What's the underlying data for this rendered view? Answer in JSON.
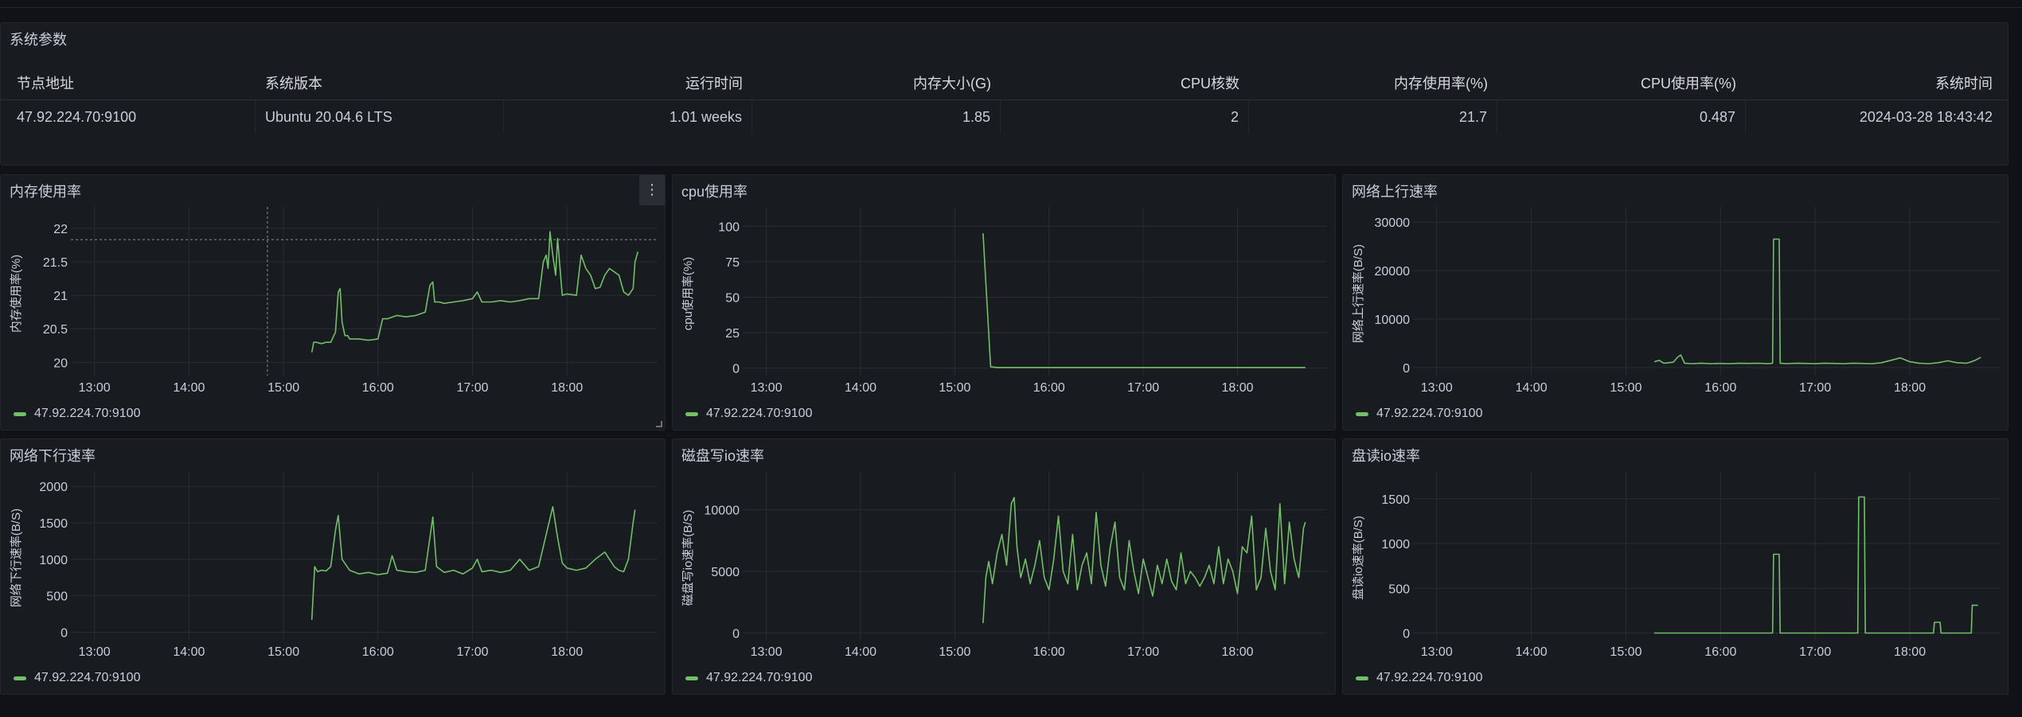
{
  "table_panel": {
    "title": "系统参数",
    "columns": [
      "节点地址",
      "系统版本",
      "运行时间",
      "内存大小(G)",
      "CPU核数",
      "内存使用率(%)",
      "CPU使用率(%)",
      "系统时间"
    ],
    "row": [
      "47.92.224.70:9100",
      "Ubuntu 20.04.6 LTS",
      "1.01 weeks",
      "1.85",
      "2",
      "21.7",
      "0.487",
      "2024-03-28 18:43:42"
    ]
  },
  "legend_label": "47.92.224.70:9100",
  "series_color": "#73bf69",
  "icons": {
    "panel_menu": "vertical-dots-icon"
  },
  "chart_data": [
    {
      "id": "mem",
      "type": "line",
      "title": "内存使用率",
      "ylabel": "内存使用率(%)",
      "xlim": [
        12.75,
        18.95
      ],
      "ylim": [
        19.85,
        22.2
      ],
      "yticks": [
        20,
        20.5,
        21,
        21.5,
        22
      ],
      "ytick_labels": [
        "20",
        "20.5",
        "21",
        "21.5",
        "22"
      ],
      "xticks": [
        13,
        14,
        15,
        16,
        17,
        18
      ],
      "xtick_labels": [
        "13:00",
        "14:00",
        "15:00",
        "16:00",
        "17:00",
        "18:00"
      ],
      "grid": true,
      "hover_x": 14.83,
      "hover_y": 21.83,
      "series": [
        {
          "name": "47.92.224.70:9100",
          "x": [
            15.3,
            15.32,
            15.35,
            15.4,
            15.45,
            15.5,
            15.55,
            15.58,
            15.6,
            15.62,
            15.65,
            15.68,
            15.7,
            15.8,
            15.9,
            16.0,
            16.05,
            16.1,
            16.2,
            16.3,
            16.4,
            16.5,
            16.55,
            16.58,
            16.6,
            16.65,
            16.7,
            16.8,
            16.9,
            17.0,
            17.05,
            17.1,
            17.2,
            17.3,
            17.4,
            17.5,
            17.6,
            17.7,
            17.75,
            17.78,
            17.8,
            17.82,
            17.85,
            17.88,
            17.9,
            17.95,
            18.0,
            18.1,
            18.15,
            18.2,
            18.25,
            18.3,
            18.35,
            18.4,
            18.45,
            18.5,
            18.55,
            18.6,
            18.65,
            18.7,
            18.72,
            18.75
          ],
          "y": [
            20.15,
            20.3,
            20.3,
            20.28,
            20.3,
            20.3,
            20.45,
            21.05,
            21.1,
            20.6,
            20.4,
            20.4,
            20.35,
            20.35,
            20.33,
            20.35,
            20.65,
            20.65,
            20.7,
            20.68,
            20.7,
            20.75,
            21.15,
            21.2,
            20.9,
            20.9,
            20.88,
            20.9,
            20.92,
            20.95,
            21.05,
            20.9,
            20.9,
            20.92,
            20.9,
            20.92,
            20.95,
            20.95,
            21.5,
            21.6,
            21.4,
            21.95,
            21.6,
            21.3,
            21.85,
            21.0,
            21.02,
            21.0,
            21.6,
            21.4,
            21.3,
            21.1,
            21.12,
            21.3,
            21.4,
            21.35,
            21.3,
            21.05,
            21.0,
            21.1,
            21.5,
            21.65
          ]
        }
      ]
    },
    {
      "id": "cpu",
      "type": "line",
      "title": "cpu使用率",
      "ylabel": "cpu使用率(%)",
      "xlim": [
        12.75,
        18.95
      ],
      "ylim": [
        -3,
        108
      ],
      "yticks": [
        0,
        25,
        50,
        75,
        100
      ],
      "ytick_labels": [
        "0",
        "25",
        "50",
        "75",
        "100"
      ],
      "xticks": [
        13,
        14,
        15,
        16,
        17,
        18
      ],
      "xtick_labels": [
        "13:00",
        "14:00",
        "15:00",
        "16:00",
        "17:00",
        "18:00"
      ],
      "grid": true,
      "series": [
        {
          "name": "47.92.224.70:9100",
          "x": [
            15.3,
            15.38,
            15.45,
            16.0,
            17.0,
            18.0,
            18.72
          ],
          "y": [
            95,
            1,
            0.5,
            0.5,
            0.5,
            0.5,
            0.5
          ]
        }
      ]
    },
    {
      "id": "net_up",
      "type": "line",
      "title": "网络上行速率",
      "ylabel": "网络上行速率(B/S)",
      "xlim": [
        12.75,
        18.95
      ],
      "ylim": [
        -1000,
        31500
      ],
      "yticks": [
        0,
        10000,
        20000,
        30000
      ],
      "ytick_labels": [
        "0",
        "10000",
        "20000",
        "30000"
      ],
      "xticks": [
        13,
        14,
        15,
        16,
        17,
        18
      ],
      "xtick_labels": [
        "13:00",
        "14:00",
        "15:00",
        "16:00",
        "17:00",
        "18:00"
      ],
      "grid": true,
      "series": [
        {
          "name": "47.92.224.70:9100",
          "x": [
            15.3,
            15.35,
            15.4,
            15.45,
            15.5,
            15.55,
            15.58,
            15.62,
            15.7,
            15.8,
            15.9,
            16.0,
            16.1,
            16.2,
            16.3,
            16.4,
            16.5,
            16.55,
            16.56,
            16.62,
            16.63,
            16.7,
            16.8,
            16.9,
            17.0,
            17.1,
            17.2,
            17.3,
            17.4,
            17.5,
            17.6,
            17.7,
            17.8,
            17.9,
            18.0,
            18.1,
            18.2,
            18.3,
            18.4,
            18.5,
            18.6,
            18.65,
            18.7,
            18.75
          ],
          "y": [
            1200,
            1500,
            900,
            1000,
            1100,
            2200,
            2600,
            900,
            800,
            900,
            800,
            850,
            800,
            900,
            850,
            900,
            800,
            900,
            26500,
            26500,
            900,
            800,
            900,
            850,
            800,
            900,
            850,
            800,
            900,
            850,
            800,
            1000,
            1500,
            2000,
            1200,
            900,
            800,
            1000,
            1400,
            1000,
            900,
            1200,
            1600,
            2100
          ]
        }
      ]
    },
    {
      "id": "net_down",
      "type": "line",
      "title": "网络下行速率",
      "ylabel": "网络下行速率(B/S)",
      "xlim": [
        12.75,
        18.95
      ],
      "ylim": [
        -60,
        2100
      ],
      "yticks": [
        0,
        500,
        1000,
        1500,
        2000
      ],
      "ytick_labels": [
        "0",
        "500",
        "1000",
        "1500",
        "2000"
      ],
      "xticks": [
        13,
        14,
        15,
        16,
        17,
        18
      ],
      "xtick_labels": [
        "13:00",
        "14:00",
        "15:00",
        "16:00",
        "17:00",
        "18:00"
      ],
      "grid": true,
      "series": [
        {
          "name": "47.92.224.70:9100",
          "x": [
            15.3,
            15.33,
            15.36,
            15.4,
            15.45,
            15.5,
            15.55,
            15.58,
            15.62,
            15.7,
            15.8,
            15.9,
            16.0,
            16.1,
            16.15,
            16.2,
            16.3,
            16.4,
            16.5,
            16.55,
            16.58,
            16.62,
            16.7,
            16.8,
            16.9,
            17.0,
            17.05,
            17.1,
            17.2,
            17.3,
            17.4,
            17.5,
            17.6,
            17.7,
            17.8,
            17.85,
            17.9,
            17.95,
            18.0,
            18.1,
            18.2,
            18.3,
            18.4,
            18.5,
            18.55,
            18.6,
            18.65,
            18.7,
            18.72
          ],
          "y": [
            170,
            900,
            830,
            850,
            840,
            900,
            1400,
            1600,
            1000,
            850,
            800,
            820,
            790,
            810,
            1050,
            850,
            830,
            820,
            850,
            1300,
            1580,
            900,
            820,
            850,
            800,
            880,
            1000,
            830,
            850,
            820,
            850,
            1000,
            850,
            900,
            1450,
            1720,
            1300,
            950,
            880,
            850,
            880,
            1000,
            1100,
            900,
            850,
            830,
            1000,
            1500,
            1680
          ]
        }
      ]
    },
    {
      "id": "disk_write",
      "type": "line",
      "title": "磁盘写io速率",
      "ylabel": "磁盘写io速率(B/S)",
      "xlim": [
        12.75,
        18.95
      ],
      "ylim": [
        -300,
        12500
      ],
      "yticks": [
        0,
        5000,
        10000
      ],
      "ytick_labels": [
        "0",
        "5000",
        "10000"
      ],
      "xticks": [
        13,
        14,
        15,
        16,
        17,
        18
      ],
      "xtick_labels": [
        "13:00",
        "14:00",
        "15:00",
        "16:00",
        "17:00",
        "18:00"
      ],
      "grid": true,
      "series": [
        {
          "name": "47.92.224.70:9100",
          "x": [
            15.3,
            15.33,
            15.36,
            15.4,
            15.45,
            15.5,
            15.55,
            15.6,
            15.63,
            15.66,
            15.7,
            15.75,
            15.8,
            15.85,
            15.9,
            15.95,
            16.0,
            16.05,
            16.1,
            16.15,
            16.2,
            16.25,
            16.3,
            16.35,
            16.4,
            16.45,
            16.5,
            16.55,
            16.6,
            16.65,
            16.7,
            16.75,
            16.8,
            16.85,
            16.9,
            16.95,
            17.0,
            17.05,
            17.1,
            17.15,
            17.2,
            17.25,
            17.3,
            17.35,
            17.4,
            17.45,
            17.5,
            17.55,
            17.6,
            17.65,
            17.7,
            17.75,
            17.8,
            17.85,
            17.9,
            17.95,
            18.0,
            18.05,
            18.1,
            18.15,
            18.2,
            18.25,
            18.3,
            18.35,
            18.4,
            18.45,
            18.5,
            18.55,
            18.6,
            18.65,
            18.7,
            18.72
          ],
          "y": [
            800,
            4500,
            5800,
            4000,
            6500,
            8000,
            5500,
            10500,
            11000,
            7000,
            4500,
            6000,
            4000,
            5500,
            7500,
            4500,
            3500,
            6000,
            9500,
            5000,
            4000,
            8000,
            3500,
            5500,
            6500,
            4000,
            9800,
            5500,
            3800,
            7000,
            9000,
            4500,
            3500,
            7500,
            5000,
            3200,
            6000,
            4500,
            3000,
            5500,
            4000,
            6000,
            4200,
            3500,
            6500,
            4000,
            5000,
            4500,
            3800,
            4500,
            5500,
            4000,
            7000,
            4000,
            6000,
            5000,
            3200,
            7000,
            6500,
            9500,
            3500,
            4500,
            8500,
            5000,
            3500,
            10500,
            4000,
            9000,
            6000,
            4500,
            8500,
            9000
          ]
        }
      ]
    },
    {
      "id": "disk_read",
      "type": "line",
      "title": "盘读io速率",
      "ylabel": "盘读io速率(B/S)",
      "xlim": [
        12.75,
        18.95
      ],
      "ylim": [
        -40,
        1720
      ],
      "yticks": [
        0,
        500,
        1000,
        1500
      ],
      "ytick_labels": [
        "0",
        "500",
        "1000",
        "1500"
      ],
      "xticks": [
        13,
        14,
        15,
        16,
        17,
        18
      ],
      "xtick_labels": [
        "13:00",
        "14:00",
        "15:00",
        "16:00",
        "17:00",
        "18:00"
      ],
      "grid": true,
      "series": [
        {
          "name": "47.92.224.70:9100",
          "x": [
            15.3,
            16.0,
            16.55,
            16.56,
            16.62,
            16.63,
            17.0,
            17.45,
            17.46,
            17.52,
            17.53,
            18.0,
            18.25,
            18.26,
            18.32,
            18.33,
            18.65,
            18.66,
            18.72
          ],
          "y": [
            0,
            0,
            0,
            880,
            880,
            0,
            0,
            0,
            1520,
            1520,
            0,
            0,
            0,
            120,
            120,
            0,
            0,
            310,
            310
          ]
        }
      ]
    }
  ]
}
